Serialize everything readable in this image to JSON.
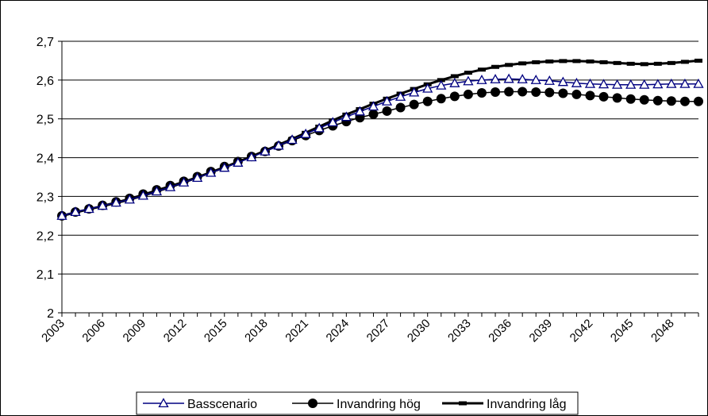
{
  "chart_data": {
    "type": "line",
    "x_start": 2003,
    "x_end": 2050,
    "x_tick_labels": [
      "2003",
      "2006",
      "2009",
      "2012",
      "2015",
      "2018",
      "2021",
      "2024",
      "2027",
      "2030",
      "2033",
      "2036",
      "2039",
      "2042",
      "2045",
      "2048"
    ],
    "ylim": [
      2,
      2.7
    ],
    "y_tick_labels": [
      "2",
      "2,1",
      "2,2",
      "2,3",
      "2,4",
      "2,5",
      "2,6",
      "2,7"
    ],
    "grid": "horizontal",
    "legend_position": "bottom",
    "series": [
      {
        "name": "Basscenario",
        "marker": "triangle-open",
        "color": "#000080",
        "values": [
          2.25,
          2.26,
          2.268,
          2.276,
          2.284,
          2.292,
          2.302,
          2.313,
          2.324,
          2.336,
          2.348,
          2.361,
          2.374,
          2.387,
          2.401,
          2.416,
          2.431,
          2.446,
          2.461,
          2.476,
          2.491,
          2.505,
          2.519,
          2.532,
          2.545,
          2.557,
          2.568,
          2.578,
          2.586,
          2.592,
          2.597,
          2.6,
          2.602,
          2.603,
          2.602,
          2.6,
          2.598,
          2.595,
          2.592,
          2.59,
          2.589,
          2.588,
          2.588,
          2.588,
          2.589,
          2.59,
          2.59,
          2.59
        ]
      },
      {
        "name": "Invandring hög",
        "marker": "circle-filled",
        "color": "#000000",
        "values": [
          2.25,
          2.26,
          2.268,
          2.277,
          2.286,
          2.295,
          2.306,
          2.317,
          2.328,
          2.339,
          2.351,
          2.364,
          2.377,
          2.39,
          2.403,
          2.416,
          2.43,
          2.444,
          2.457,
          2.47,
          2.482,
          2.493,
          2.503,
          2.512,
          2.52,
          2.529,
          2.537,
          2.545,
          2.552,
          2.558,
          2.563,
          2.567,
          2.569,
          2.57,
          2.57,
          2.569,
          2.568,
          2.566,
          2.563,
          2.56,
          2.557,
          2.554,
          2.551,
          2.549,
          2.547,
          2.546,
          2.545,
          2.545
        ]
      },
      {
        "name": "Invandring låg",
        "marker": "dash",
        "color": "#000000",
        "values": [
          2.25,
          2.259,
          2.267,
          2.275,
          2.283,
          2.292,
          2.302,
          2.313,
          2.324,
          2.336,
          2.349,
          2.362,
          2.375,
          2.389,
          2.403,
          2.418,
          2.433,
          2.448,
          2.464,
          2.48,
          2.496,
          2.511,
          2.525,
          2.539,
          2.552,
          2.565,
          2.577,
          2.589,
          2.6,
          2.61,
          2.619,
          2.627,
          2.634,
          2.639,
          2.643,
          2.646,
          2.648,
          2.649,
          2.649,
          2.648,
          2.646,
          2.644,
          2.642,
          2.641,
          2.642,
          2.644,
          2.647,
          2.65
        ]
      }
    ]
  }
}
